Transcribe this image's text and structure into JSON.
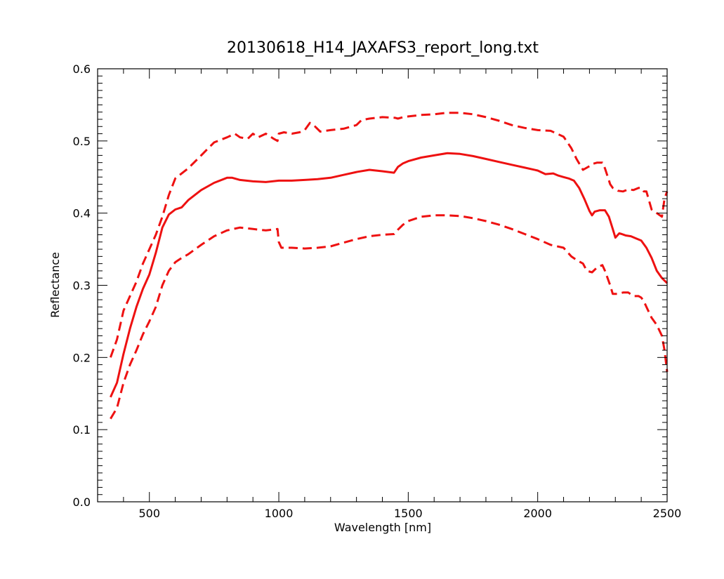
{
  "chart_data": {
    "type": "line",
    "title": "20130618_H14_JAXAFS3_report_long.txt",
    "xlabel": "Wavelength [nm]",
    "ylabel": "Reflectance",
    "xlim": [
      300,
      2500
    ],
    "ylim": [
      0.0,
      0.6
    ],
    "x_ticks": [
      500,
      1000,
      1500,
      2000,
      2500
    ],
    "y_ticks": [
      0.0,
      0.1,
      0.2,
      0.3,
      0.4,
      0.5,
      0.6
    ],
    "x_tick_labels": [
      "500",
      "1000",
      "1500",
      "2000",
      "2500"
    ],
    "y_tick_labels": [
      "0.0",
      "0.1",
      "0.2",
      "0.3",
      "0.4",
      "0.5",
      "0.6"
    ],
    "grid": false,
    "legend": false,
    "color": "#ee1111",
    "series": [
      {
        "style": "solid",
        "x": [
          350,
          375,
          400,
          425,
          450,
          475,
          500,
          525,
          550,
          575,
          600,
          625,
          650,
          700,
          750,
          800,
          820,
          850,
          900,
          950,
          1000,
          1050,
          1100,
          1150,
          1200,
          1250,
          1300,
          1350,
          1400,
          1445,
          1460,
          1480,
          1500,
          1550,
          1600,
          1650,
          1700,
          1750,
          1800,
          1850,
          1900,
          1950,
          2000,
          2030,
          2060,
          2080,
          2100,
          2120,
          2140,
          2160,
          2180,
          2200,
          2210,
          2220,
          2240,
          2260,
          2275,
          2290,
          2300,
          2315,
          2325,
          2340,
          2360,
          2380,
          2400,
          2420,
          2440,
          2460,
          2480,
          2500
        ],
        "y": [
          0.145,
          0.165,
          0.205,
          0.24,
          0.27,
          0.295,
          0.315,
          0.345,
          0.38,
          0.398,
          0.405,
          0.408,
          0.418,
          0.432,
          0.442,
          0.449,
          0.449,
          0.446,
          0.444,
          0.443,
          0.445,
          0.445,
          0.446,
          0.447,
          0.449,
          0.453,
          0.457,
          0.46,
          0.458,
          0.456,
          0.464,
          0.469,
          0.472,
          0.477,
          0.48,
          0.483,
          0.482,
          0.479,
          0.475,
          0.471,
          0.467,
          0.463,
          0.459,
          0.454,
          0.455,
          0.452,
          0.45,
          0.448,
          0.445,
          0.435,
          0.42,
          0.403,
          0.397,
          0.402,
          0.404,
          0.404,
          0.395,
          0.378,
          0.366,
          0.372,
          0.371,
          0.369,
          0.368,
          0.365,
          0.362,
          0.352,
          0.338,
          0.32,
          0.31,
          0.303
        ]
      },
      {
        "style": "dashed",
        "x": [
          350,
          375,
          400,
          425,
          450,
          475,
          500,
          525,
          550,
          575,
          600,
          650,
          700,
          750,
          800,
          830,
          850,
          880,
          900,
          920,
          950,
          980,
          995,
          1000,
          1020,
          1050,
          1080,
          1100,
          1120,
          1140,
          1160,
          1180,
          1200,
          1250,
          1300,
          1320,
          1350,
          1400,
          1450,
          1460,
          1480,
          1500,
          1550,
          1600,
          1650,
          1700,
          1750,
          1800,
          1850,
          1900,
          1950,
          2000,
          2050,
          2100,
          2130,
          2150,
          2175,
          2200,
          2210,
          2230,
          2250,
          2260,
          2280,
          2290,
          2310,
          2330,
          2350,
          2370,
          2390,
          2400,
          2410,
          2420,
          2440,
          2460,
          2480,
          2490,
          2500
        ],
        "y": [
          0.2,
          0.225,
          0.265,
          0.285,
          0.305,
          0.33,
          0.35,
          0.37,
          0.395,
          0.425,
          0.448,
          0.462,
          0.48,
          0.498,
          0.505,
          0.51,
          0.505,
          0.503,
          0.51,
          0.505,
          0.51,
          0.503,
          0.5,
          0.51,
          0.512,
          0.51,
          0.512,
          0.515,
          0.525,
          0.52,
          0.513,
          0.514,
          0.515,
          0.517,
          0.522,
          0.529,
          0.531,
          0.533,
          0.532,
          0.531,
          0.533,
          0.534,
          0.536,
          0.537,
          0.539,
          0.539,
          0.537,
          0.533,
          0.528,
          0.522,
          0.518,
          0.515,
          0.514,
          0.506,
          0.49,
          0.475,
          0.46,
          0.465,
          0.468,
          0.47,
          0.47,
          0.462,
          0.44,
          0.435,
          0.431,
          0.43,
          0.433,
          0.432,
          0.435,
          0.435,
          0.43,
          0.43,
          0.405,
          0.4,
          0.395,
          0.42,
          0.43
        ]
      },
      {
        "style": "dashed",
        "x": [
          350,
          375,
          400,
          425,
          450,
          475,
          500,
          525,
          550,
          575,
          600,
          625,
          650,
          700,
          750,
          800,
          850,
          900,
          950,
          995,
          1000,
          1010,
          1050,
          1100,
          1150,
          1200,
          1250,
          1300,
          1350,
          1400,
          1445,
          1460,
          1480,
          1500,
          1550,
          1600,
          1650,
          1700,
          1750,
          1800,
          1850,
          1900,
          1950,
          2000,
          2050,
          2100,
          2130,
          2150,
          2175,
          2190,
          2210,
          2230,
          2250,
          2260,
          2280,
          2290,
          2310,
          2330,
          2350,
          2370,
          2390,
          2400,
          2410,
          2420,
          2440,
          2460,
          2480,
          2490,
          2500
        ],
        "y": [
          0.115,
          0.13,
          0.165,
          0.19,
          0.21,
          0.232,
          0.25,
          0.27,
          0.3,
          0.32,
          0.332,
          0.338,
          0.343,
          0.356,
          0.368,
          0.376,
          0.38,
          0.378,
          0.376,
          0.378,
          0.36,
          0.352,
          0.352,
          0.351,
          0.352,
          0.354,
          0.359,
          0.364,
          0.368,
          0.37,
          0.371,
          0.377,
          0.384,
          0.389,
          0.395,
          0.397,
          0.397,
          0.396,
          0.393,
          0.389,
          0.384,
          0.378,
          0.371,
          0.364,
          0.356,
          0.352,
          0.34,
          0.335,
          0.33,
          0.32,
          0.318,
          0.325,
          0.328,
          0.32,
          0.3,
          0.288,
          0.288,
          0.29,
          0.29,
          0.285,
          0.285,
          0.283,
          0.278,
          0.27,
          0.255,
          0.245,
          0.23,
          0.21,
          0.18
        ]
      }
    ]
  }
}
